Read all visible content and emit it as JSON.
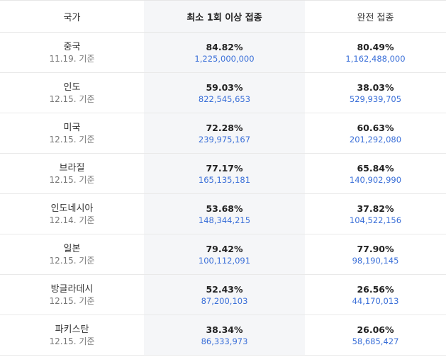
{
  "header": {
    "country": "국가",
    "at_least_one": "최소 1회 이상 접종",
    "fully": "완전 접종"
  },
  "rows": [
    {
      "country": "중국",
      "date": "11.19. 기준",
      "one_pct": "84.82%",
      "one_count": "1,225,000,000",
      "full_pct": "80.49%",
      "full_count": "1,162,488,000"
    },
    {
      "country": "인도",
      "date": "12.15. 기준",
      "one_pct": "59.03%",
      "one_count": "822,545,653",
      "full_pct": "38.03%",
      "full_count": "529,939,705"
    },
    {
      "country": "미국",
      "date": "12.15. 기준",
      "one_pct": "72.28%",
      "one_count": "239,975,167",
      "full_pct": "60.63%",
      "full_count": "201,292,080"
    },
    {
      "country": "브라질",
      "date": "12.15. 기준",
      "one_pct": "77.17%",
      "one_count": "165,135,181",
      "full_pct": "65.84%",
      "full_count": "140,902,990"
    },
    {
      "country": "인도네시아",
      "date": "12.14. 기준",
      "one_pct": "53.68%",
      "one_count": "148,344,215",
      "full_pct": "37.82%",
      "full_count": "104,522,156"
    },
    {
      "country": "일본",
      "date": "12.15. 기준",
      "one_pct": "79.42%",
      "one_count": "100,112,091",
      "full_pct": "77.90%",
      "full_count": "98,190,145"
    },
    {
      "country": "방글라데시",
      "date": "12.15. 기준",
      "one_pct": "52.43%",
      "one_count": "87,200,103",
      "full_pct": "26.56%",
      "full_count": "44,170,013"
    },
    {
      "country": "파키스탄",
      "date": "12.15. 기준",
      "one_pct": "38.34%",
      "one_count": "86,333,973",
      "full_pct": "26.06%",
      "full_count": "58,685,427"
    }
  ],
  "colors": {
    "count_text": "#3a6fd8",
    "highlight_column_bg": "#f5f6f8"
  }
}
